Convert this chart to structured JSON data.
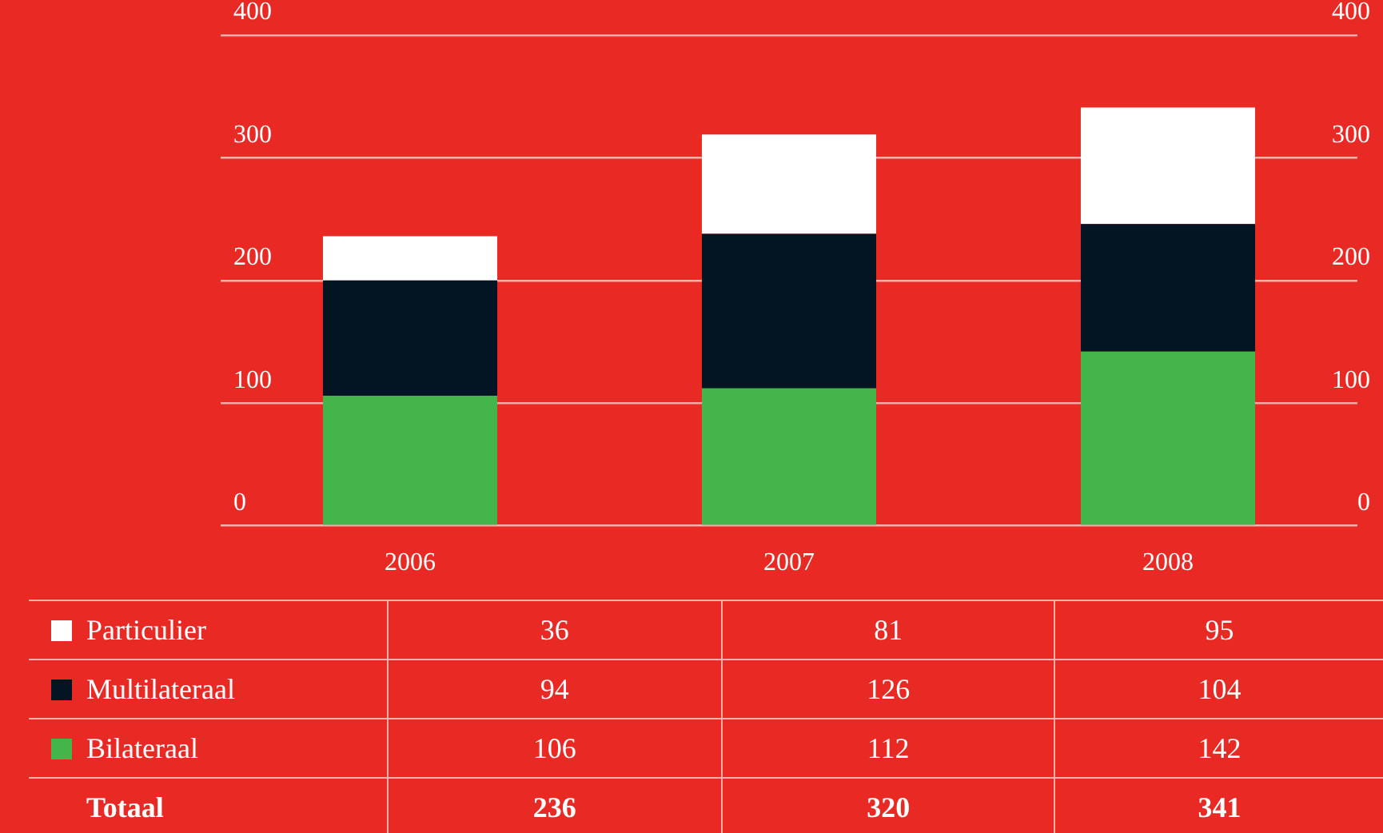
{
  "chart_data": {
    "type": "bar",
    "stacked": true,
    "categories": [
      "2006",
      "2007",
      "2008"
    ],
    "series": [
      {
        "name": "Bilateraal",
        "color": "#43b54b",
        "values": [
          106,
          112,
          142
        ]
      },
      {
        "name": "Multilateraal",
        "color": "#031522",
        "values": [
          94,
          126,
          104
        ]
      },
      {
        "name": "Particulier",
        "color": "#ffffff",
        "values": [
          36,
          81,
          95
        ]
      }
    ],
    "ylim": [
      0,
      400
    ],
    "yticks": [
      0,
      100,
      200,
      300,
      400
    ],
    "y2lim": [
      0,
      400
    ],
    "y2ticks": [
      0,
      100,
      200,
      300,
      400
    ],
    "grid": "y",
    "legend": "bottom left",
    "data_labels": true,
    "annotations": [
      "Totaal",
      "236",
      "320",
      "341"
    ]
  }
}
